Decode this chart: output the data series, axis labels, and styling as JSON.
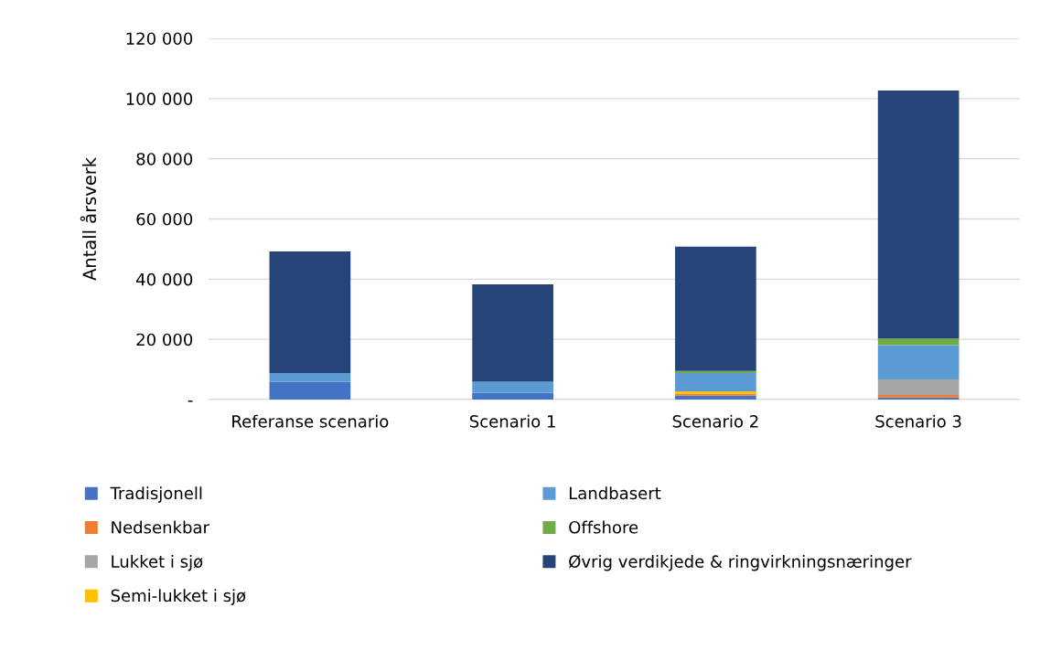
{
  "chart_data": {
    "type": "bar",
    "stacked": true,
    "ylabel": "Antall årsverk",
    "categories": [
      "Referanse scenario",
      "Scenario 1",
      "Scenario 2",
      "Scenario 3"
    ],
    "series": [
      {
        "name": "Tradisjonell",
        "color": "#4472c4",
        "values": [
          5900,
          2300,
          1300,
          700
        ]
      },
      {
        "name": "Nedsenkbar",
        "color": "#ed7d31",
        "values": [
          0,
          0,
          600,
          800
        ]
      },
      {
        "name": "Lukket i sjø",
        "color": "#a5a5a5",
        "values": [
          0,
          0,
          0,
          5200
        ]
      },
      {
        "name": "Semi-lukket i sjø",
        "color": "#ffc000",
        "values": [
          0,
          0,
          800,
          0
        ]
      },
      {
        "name": "Landbasert",
        "color": "#5b9bd5",
        "values": [
          2800,
          3600,
          6100,
          11400
        ]
      },
      {
        "name": "Offshore",
        "color": "#70ad47",
        "values": [
          0,
          0,
          700,
          2200
        ]
      },
      {
        "name": "Øvrig verdikjede & ringvirkningsnæringer",
        "color": "#264478",
        "values": [
          40500,
          32400,
          41300,
          82400
        ]
      }
    ],
    "ylim": [
      0,
      120000
    ],
    "yticks": [
      {
        "value": 0,
        "label": "-"
      },
      {
        "value": 20000,
        "label": "20 000"
      },
      {
        "value": 40000,
        "label": "40 000"
      },
      {
        "value": 60000,
        "label": "60 000"
      },
      {
        "value": 80000,
        "label": "80 000"
      },
      {
        "value": 100000,
        "label": "100 000"
      },
      {
        "value": 120000,
        "label": "120 000"
      }
    ],
    "grid": "y",
    "legend": "bottom"
  }
}
